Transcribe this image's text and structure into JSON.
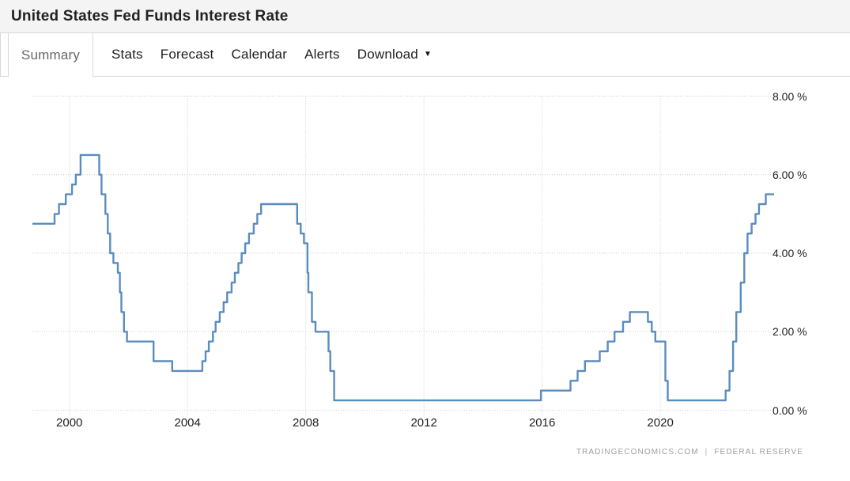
{
  "header": {
    "title": "United States Fed Funds Interest Rate"
  },
  "tabs": [
    {
      "id": "summary",
      "label": "Summary",
      "active": true,
      "has_dropdown": false
    },
    {
      "id": "stats",
      "label": "Stats",
      "active": false,
      "has_dropdown": false
    },
    {
      "id": "forecast",
      "label": "Forecast",
      "active": false,
      "has_dropdown": false
    },
    {
      "id": "calendar",
      "label": "Calendar",
      "active": false,
      "has_dropdown": false
    },
    {
      "id": "alerts",
      "label": "Alerts",
      "active": false,
      "has_dropdown": false
    },
    {
      "id": "download",
      "label": "Download",
      "active": false,
      "has_dropdown": true
    }
  ],
  "attribution": {
    "source_left": "TRADINGECONOMICS.COM",
    "separator": "|",
    "source_right": "FEDERAL RESERVE"
  },
  "chart_data": {
    "type": "line",
    "title": "United States Fed Funds Interest Rate",
    "xlabel": "",
    "ylabel": "",
    "unit": "%",
    "legend": "none",
    "grid": "dotted",
    "line_color": "#5b8cbe",
    "interpolation": "step-after",
    "xlim": [
      1998.75,
      2023.85
    ],
    "ylim": [
      0,
      8
    ],
    "x_ticks": [
      {
        "value": 2000,
        "label": "2000"
      },
      {
        "value": 2004,
        "label": "2004"
      },
      {
        "value": 2008,
        "label": "2008"
      },
      {
        "value": 2012,
        "label": "2012"
      },
      {
        "value": 2016,
        "label": "2016"
      },
      {
        "value": 2020,
        "label": "2020"
      }
    ],
    "y_ticks": [
      {
        "value": 0,
        "label": "0.00 %"
      },
      {
        "value": 2,
        "label": "2.00 %"
      },
      {
        "value": 4,
        "label": "4.00 %"
      },
      {
        "value": 6,
        "label": "6.00 %"
      },
      {
        "value": 8,
        "label": "8.00 %"
      }
    ],
    "series": [
      {
        "name": "Fed Funds Interest Rate",
        "points_format": "[year_decimal, rate_percent] rate-change points, step-after interpolation",
        "points": [
          [
            1998.75,
            4.75
          ],
          [
            1999.5,
            5.0
          ],
          [
            1999.65,
            5.25
          ],
          [
            1999.88,
            5.5
          ],
          [
            2000.09,
            5.75
          ],
          [
            2000.22,
            6.0
          ],
          [
            2000.38,
            6.5
          ],
          [
            2001.01,
            6.0
          ],
          [
            2001.09,
            5.5
          ],
          [
            2001.22,
            5.0
          ],
          [
            2001.3,
            4.5
          ],
          [
            2001.38,
            4.0
          ],
          [
            2001.49,
            3.75
          ],
          [
            2001.64,
            3.5
          ],
          [
            2001.71,
            3.0
          ],
          [
            2001.76,
            2.5
          ],
          [
            2001.85,
            2.0
          ],
          [
            2001.95,
            1.75
          ],
          [
            2002.85,
            1.25
          ],
          [
            2003.48,
            1.0
          ],
          [
            2004.5,
            1.25
          ],
          [
            2004.61,
            1.5
          ],
          [
            2004.72,
            1.75
          ],
          [
            2004.86,
            2.0
          ],
          [
            2004.95,
            2.25
          ],
          [
            2005.09,
            2.5
          ],
          [
            2005.22,
            2.75
          ],
          [
            2005.34,
            3.0
          ],
          [
            2005.49,
            3.25
          ],
          [
            2005.6,
            3.5
          ],
          [
            2005.72,
            3.75
          ],
          [
            2005.83,
            4.0
          ],
          [
            2005.95,
            4.25
          ],
          [
            2006.08,
            4.5
          ],
          [
            2006.24,
            4.75
          ],
          [
            2006.36,
            5.0
          ],
          [
            2006.49,
            5.25
          ],
          [
            2007.71,
            4.75
          ],
          [
            2007.83,
            4.5
          ],
          [
            2007.94,
            4.25
          ],
          [
            2008.06,
            3.5
          ],
          [
            2008.09,
            3.0
          ],
          [
            2008.21,
            2.25
          ],
          [
            2008.33,
            2.0
          ],
          [
            2008.77,
            1.5
          ],
          [
            2008.83,
            1.0
          ],
          [
            2008.96,
            0.25
          ],
          [
            2015.96,
            0.5
          ],
          [
            2016.96,
            0.75
          ],
          [
            2017.2,
            1.0
          ],
          [
            2017.45,
            1.25
          ],
          [
            2017.95,
            1.5
          ],
          [
            2018.22,
            1.75
          ],
          [
            2018.45,
            2.0
          ],
          [
            2018.74,
            2.25
          ],
          [
            2018.97,
            2.5
          ],
          [
            2019.58,
            2.25
          ],
          [
            2019.71,
            2.0
          ],
          [
            2019.83,
            1.75
          ],
          [
            2020.17,
            0.75
          ],
          [
            2020.25,
            0.25
          ],
          [
            2022.21,
            0.5
          ],
          [
            2022.34,
            1.0
          ],
          [
            2022.46,
            1.75
          ],
          [
            2022.57,
            2.5
          ],
          [
            2022.72,
            3.25
          ],
          [
            2022.84,
            4.0
          ],
          [
            2022.95,
            4.5
          ],
          [
            2023.09,
            4.75
          ],
          [
            2023.22,
            5.0
          ],
          [
            2023.34,
            5.25
          ],
          [
            2023.57,
            5.5
          ],
          [
            2023.85,
            5.5
          ]
        ]
      }
    ]
  }
}
